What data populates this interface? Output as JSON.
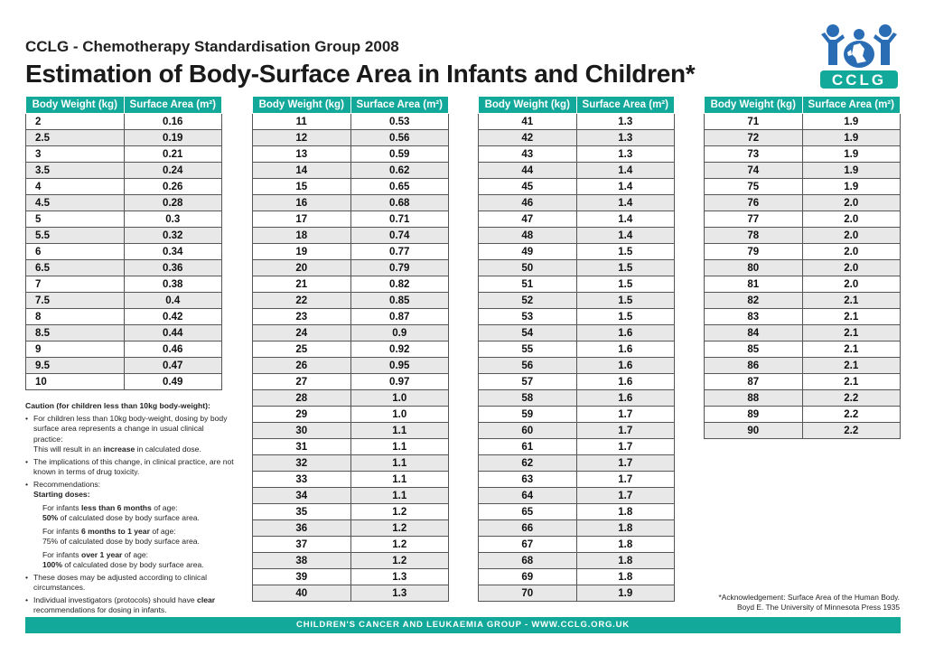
{
  "header": {
    "subtitle": "CCLG - Chemotherapy Standardisation Group 2008",
    "title": "Estimation of Body-Surface Area in Infants and Children*",
    "logo_text": "CCLG"
  },
  "table_headers": {
    "weight": "Body Weight (kg)",
    "area": "Surface Area (m²)"
  },
  "columns": [
    [
      [
        "2",
        "0.16"
      ],
      [
        "2.5",
        "0.19"
      ],
      [
        "3",
        "0.21"
      ],
      [
        "3.5",
        "0.24"
      ],
      [
        "4",
        "0.26"
      ],
      [
        "4.5",
        "0.28"
      ],
      [
        "5",
        "0.3"
      ],
      [
        "5.5",
        "0.32"
      ],
      [
        "6",
        "0.34"
      ],
      [
        "6.5",
        "0.36"
      ],
      [
        "7",
        "0.38"
      ],
      [
        "7.5",
        "0.4"
      ],
      [
        "8",
        "0.42"
      ],
      [
        "8.5",
        "0.44"
      ],
      [
        "9",
        "0.46"
      ],
      [
        "9.5",
        "0.47"
      ],
      [
        "10",
        "0.49"
      ]
    ],
    [
      [
        "11",
        "0.53"
      ],
      [
        "12",
        "0.56"
      ],
      [
        "13",
        "0.59"
      ],
      [
        "14",
        "0.62"
      ],
      [
        "15",
        "0.65"
      ],
      [
        "16",
        "0.68"
      ],
      [
        "17",
        "0.71"
      ],
      [
        "18",
        "0.74"
      ],
      [
        "19",
        "0.77"
      ],
      [
        "20",
        "0.79"
      ],
      [
        "21",
        "0.82"
      ],
      [
        "22",
        "0.85"
      ],
      [
        "23",
        "0.87"
      ],
      [
        "24",
        "0.9"
      ],
      [
        "25",
        "0.92"
      ],
      [
        "26",
        "0.95"
      ],
      [
        "27",
        "0.97"
      ],
      [
        "28",
        "1.0"
      ],
      [
        "29",
        "1.0"
      ],
      [
        "30",
        "1.1"
      ],
      [
        "31",
        "1.1"
      ],
      [
        "32",
        "1.1"
      ],
      [
        "33",
        "1.1"
      ],
      [
        "34",
        "1.1"
      ],
      [
        "35",
        "1.2"
      ],
      [
        "36",
        "1.2"
      ],
      [
        "37",
        "1.2"
      ],
      [
        "38",
        "1.2"
      ],
      [
        "39",
        "1.3"
      ],
      [
        "40",
        "1.3"
      ]
    ],
    [
      [
        "41",
        "1.3"
      ],
      [
        "42",
        "1.3"
      ],
      [
        "43",
        "1.3"
      ],
      [
        "44",
        "1.4"
      ],
      [
        "45",
        "1.4"
      ],
      [
        "46",
        "1.4"
      ],
      [
        "47",
        "1.4"
      ],
      [
        "48",
        "1.4"
      ],
      [
        "49",
        "1.5"
      ],
      [
        "50",
        "1.5"
      ],
      [
        "51",
        "1.5"
      ],
      [
        "52",
        "1.5"
      ],
      [
        "53",
        "1.5"
      ],
      [
        "54",
        "1.6"
      ],
      [
        "55",
        "1.6"
      ],
      [
        "56",
        "1.6"
      ],
      [
        "57",
        "1.6"
      ],
      [
        "58",
        "1.6"
      ],
      [
        "59",
        "1.7"
      ],
      [
        "60",
        "1.7"
      ],
      [
        "61",
        "1.7"
      ],
      [
        "62",
        "1.7"
      ],
      [
        "63",
        "1.7"
      ],
      [
        "64",
        "1.7"
      ],
      [
        "65",
        "1.8"
      ],
      [
        "66",
        "1.8"
      ],
      [
        "67",
        "1.8"
      ],
      [
        "68",
        "1.8"
      ],
      [
        "69",
        "1.8"
      ],
      [
        "70",
        "1.9"
      ]
    ],
    [
      [
        "71",
        "1.9"
      ],
      [
        "72",
        "1.9"
      ],
      [
        "73",
        "1.9"
      ],
      [
        "74",
        "1.9"
      ],
      [
        "75",
        "1.9"
      ],
      [
        "76",
        "2.0"
      ],
      [
        "77",
        "2.0"
      ],
      [
        "78",
        "2.0"
      ],
      [
        "79",
        "2.0"
      ],
      [
        "80",
        "2.0"
      ],
      [
        "81",
        "2.0"
      ],
      [
        "82",
        "2.1"
      ],
      [
        "83",
        "2.1"
      ],
      [
        "84",
        "2.1"
      ],
      [
        "85",
        "2.1"
      ],
      [
        "86",
        "2.1"
      ],
      [
        "87",
        "2.1"
      ],
      [
        "88",
        "2.2"
      ],
      [
        "89",
        "2.2"
      ],
      [
        "90",
        "2.2"
      ]
    ]
  ],
  "caution": {
    "heading": "Caution (for children less than 10kg body-weight):",
    "b1": "For children less than 10kg body-weight, dosing by body surface area represents a change in usual clinical practice:",
    "b1_cont_pre": "This will result in an ",
    "b1_cont_bold": "increase",
    "b1_cont_post": " in calculated dose.",
    "b2": "The implications of this change, in clinical practice, are not known in terms of drug toxicity.",
    "b3": "Recommendations:",
    "starting": "Starting doses:",
    "r1_pre": "For infants ",
    "r1_bold": "less than 6 months",
    "r1_post": " of age:",
    "r1_pct": "50%",
    "r1_rest": " of calculated dose by body surface area.",
    "r2_pre": "For infants ",
    "r2_bold": "6 months to 1 year",
    "r2_post": " of age:",
    "r2_line": "75% of calculated dose by body surface area.",
    "r3_pre": "For infants ",
    "r3_bold": "over 1 year",
    "r3_post": " of age:",
    "r3_pct": "100%",
    "r3_rest": " of calculated dose by body surface area.",
    "b4": "These doses may be adjusted according to clinical circumstances.",
    "b5_pre": "Individual investigators (protocols) should have ",
    "b5_bold": "clear",
    "b5_post": " recommendations for dosing in infants."
  },
  "ack": {
    "line1": "*Acknowledgement: Surface Area of the Human Body.",
    "line2": "Boyd E. The University of Minnesota Press 1935"
  },
  "footer": "CHILDREN'S CANCER AND LEUKAEMIA GROUP - WWW.CCLG.ORG.UK",
  "colors": {
    "accent": "#12a89a",
    "logo_blue": "#2a6db5",
    "row_shade": "#e8e8e8"
  }
}
